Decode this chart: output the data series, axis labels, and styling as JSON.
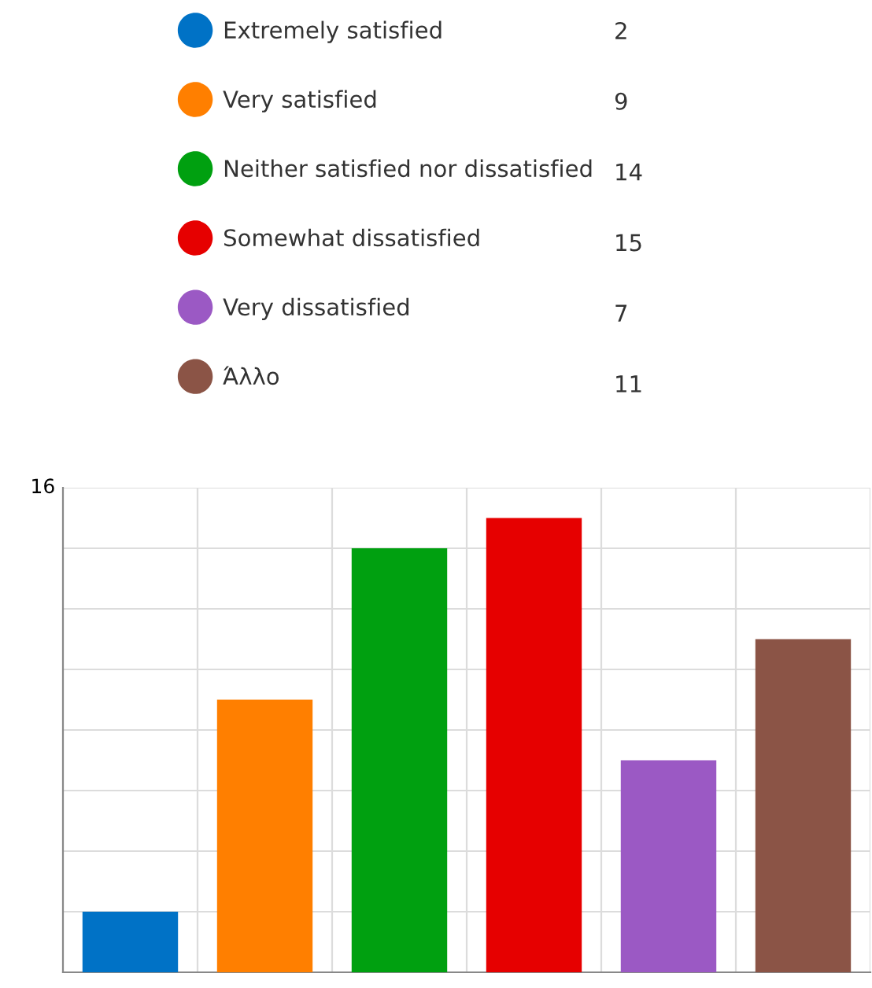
{
  "chart_data": {
    "type": "bar",
    "categories": [
      null,
      null,
      null,
      null,
      null,
      null
    ],
    "series": [
      {
        "name": "Extremely satisfied",
        "color": "#0072c6",
        "values": [
          2,
          null,
          null,
          null,
          null,
          null
        ]
      },
      {
        "name": "Very satisfied",
        "color": "#ff7f00",
        "values": [
          null,
          9,
          null,
          null,
          null,
          null
        ]
      },
      {
        "name": "Neither satisfied nor dissatisfied",
        "color": "#00a010",
        "values": [
          null,
          null,
          14,
          null,
          null,
          null
        ]
      },
      {
        "name": "Somewhat dissatisfied",
        "color": "#e60000",
        "values": [
          null,
          null,
          null,
          15,
          null,
          null
        ]
      },
      {
        "name": "Very dissatisfied",
        "color": "#9b59c4",
        "values": [
          null,
          null,
          null,
          null,
          7,
          null
        ]
      },
      {
        "name": "Άλλο",
        "color": "#8b5446",
        "values": [
          null,
          null,
          null,
          null,
          null,
          11
        ]
      }
    ],
    "ylim": [
      0,
      16
    ],
    "yticks": [
      {
        "value": 2,
        "label": null
      },
      {
        "value": 4,
        "label": null
      },
      {
        "value": 6,
        "label": null
      },
      {
        "value": 8,
        "label": null
      },
      {
        "value": 10,
        "label": null
      },
      {
        "value": 12,
        "label": null
      },
      {
        "value": 14,
        "label": null
      },
      16
    ],
    "tick_labels": "y",
    "grid": true,
    "legend": "top",
    "stacked": true,
    "annotations": [
      "2",
      "9",
      "14",
      "15",
      "7",
      "11"
    ]
  }
}
